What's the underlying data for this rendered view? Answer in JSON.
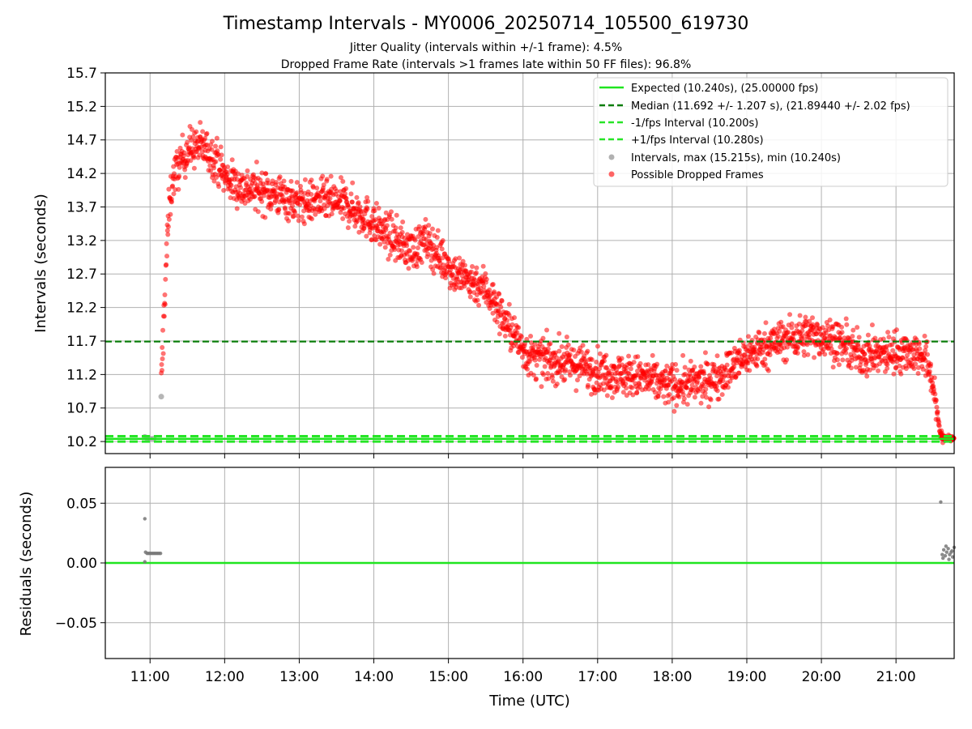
{
  "chart_data": [
    {
      "type": "scatter",
      "title": "Timestamp Intervals - MY0006_20250714_105500_619730",
      "subtitle_1": "Jitter Quality (intervals within +/-1 frame): 4.5%",
      "subtitle_2": "Dropped Frame Rate (intervals >1 frames late within 50 FF files): 96.8%",
      "ylabel": "Intervals (seconds)",
      "xlim_hours": [
        10.4,
        21.78
      ],
      "ylim": [
        10.02,
        15.7
      ],
      "yticks": [
        "10.2",
        "10.7",
        "11.2",
        "11.7",
        "12.2",
        "12.7",
        "13.2",
        "13.7",
        "14.2",
        "14.7",
        "15.2",
        "15.7"
      ],
      "grid": true,
      "legend_position": "upper-right",
      "reference_lines": [
        {
          "name": "Expected (10.240s), (25.00000 fps)",
          "y": 10.24,
          "style": "solid",
          "color": "#1fe51f"
        },
        {
          "name": "Median (11.692 +/- 1.207 s), (21.89440 +/- 2.02 fps)",
          "y": 11.692,
          "style": "dashed",
          "color": "#0a7d0a"
        },
        {
          "name": "-1/fps Interval (10.200s)",
          "y": 10.2,
          "style": "dashed",
          "color": "#27e527"
        },
        {
          "name": "+1/fps Interval (10.280s)",
          "y": 10.28,
          "style": "dashed",
          "color": "#27e527"
        }
      ],
      "scatter_series": [
        {
          "name": "Intervals, max (15.215s), min (10.240s)",
          "color": "#9e9e9e",
          "points": [
            [
              10.93,
              10.27
            ],
            [
              10.96,
              10.25
            ],
            [
              11.0,
              10.245
            ],
            [
              11.05,
              10.245
            ],
            [
              11.15,
              10.87
            ]
          ]
        },
        {
          "name": "Possible Dropped Frames",
          "color": "#ff0000",
          "trend": [
            [
              11.15,
              11.0
            ],
            [
              11.2,
              12.5
            ],
            [
              11.25,
              13.6
            ],
            [
              11.3,
              14.1
            ],
            [
              11.4,
              14.35
            ],
            [
              11.5,
              14.55
            ],
            [
              11.6,
              14.6
            ],
            [
              11.7,
              14.6
            ],
            [
              11.8,
              14.5
            ],
            [
              11.9,
              14.4
            ],
            [
              12.0,
              14.15
            ],
            [
              12.2,
              14.0
            ],
            [
              12.5,
              13.95
            ],
            [
              12.8,
              13.85
            ],
            [
              13.0,
              13.75
            ],
            [
              13.3,
              13.8
            ],
            [
              13.6,
              13.75
            ],
            [
              13.9,
              13.55
            ],
            [
              14.1,
              13.35
            ],
            [
              14.3,
              13.2
            ],
            [
              14.5,
              13.05
            ],
            [
              14.7,
              13.2
            ],
            [
              14.9,
              12.95
            ],
            [
              15.1,
              12.7
            ],
            [
              15.3,
              12.6
            ],
            [
              15.5,
              12.5
            ],
            [
              15.7,
              12.1
            ],
            [
              15.9,
              11.75
            ],
            [
              16.1,
              11.45
            ],
            [
              16.4,
              11.4
            ],
            [
              16.7,
              11.35
            ],
            [
              17.0,
              11.25
            ],
            [
              17.3,
              11.2
            ],
            [
              17.6,
              11.15
            ],
            [
              17.9,
              11.05
            ],
            [
              18.2,
              11.05
            ],
            [
              18.5,
              11.1
            ],
            [
              18.8,
              11.3
            ],
            [
              19.0,
              11.5
            ],
            [
              19.3,
              11.65
            ],
            [
              19.6,
              11.75
            ],
            [
              19.9,
              11.8
            ],
            [
              20.2,
              11.7
            ],
            [
              20.5,
              11.5
            ],
            [
              20.8,
              11.5
            ],
            [
              21.1,
              11.55
            ],
            [
              21.35,
              11.5
            ],
            [
              21.45,
              11.3
            ],
            [
              21.52,
              10.9
            ],
            [
              21.58,
              10.4
            ],
            [
              21.62,
              10.26
            ],
            [
              21.78,
              10.24
            ]
          ],
          "spread": 0.28,
          "count": 2400
        }
      ]
    },
    {
      "type": "scatter",
      "xlabel": "Time (UTC)",
      "ylabel": "Residuals (seconds)",
      "xlim_hours": [
        10.4,
        21.78
      ],
      "ylim": [
        -0.08,
        0.08
      ],
      "yticks": [
        "−0.05",
        "0.00",
        "0.05"
      ],
      "xticks": [
        "11:00",
        "12:00",
        "13:00",
        "14:00",
        "15:00",
        "16:00",
        "17:00",
        "18:00",
        "19:00",
        "20:00",
        "21:00"
      ],
      "grid": true,
      "zero_line_color": "#1fe51f",
      "series": [
        {
          "color": "#777777",
          "points": [
            [
              10.93,
              0.037
            ],
            [
              10.94,
              0.009
            ],
            [
              10.96,
              0.008
            ],
            [
              10.98,
              0.008
            ],
            [
              11.0,
              0.008
            ],
            [
              11.02,
              0.008
            ],
            [
              11.04,
              0.008
            ],
            [
              11.06,
              0.008
            ],
            [
              11.08,
              0.008
            ],
            [
              11.1,
              0.008
            ],
            [
              11.12,
              0.008
            ],
            [
              11.14,
              0.008
            ],
            [
              10.93,
              0.001
            ],
            [
              21.6,
              0.051
            ],
            [
              21.62,
              0.007
            ],
            [
              21.64,
              0.011
            ],
            [
              21.66,
              0.006
            ],
            [
              21.68,
              0.009
            ],
            [
              21.7,
              0.012
            ],
            [
              21.72,
              0.007
            ],
            [
              21.74,
              0.009
            ],
            [
              21.76,
              0.005
            ],
            [
              21.78,
              0.013
            ],
            [
              21.63,
              0.004
            ],
            [
              21.67,
              0.014
            ],
            [
              21.71,
              0.003
            ],
            [
              21.75,
              0.01
            ]
          ]
        }
      ]
    }
  ]
}
